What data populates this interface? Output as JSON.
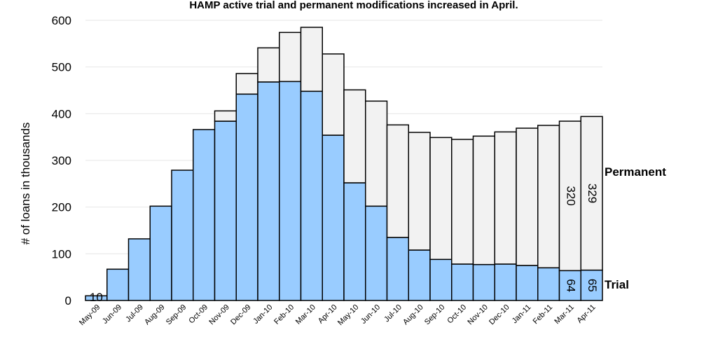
{
  "chart_data": {
    "type": "stacked-bar",
    "title": "HAMP active trial and permanent modifications increased in April.",
    "y_label": "# of loans in thousands",
    "categories": [
      "May-09",
      "Jun-09",
      "Jul-09",
      "Aug-09",
      "Sep-09",
      "Oct-09",
      "Nov-09",
      "Dec-09",
      "Jan-10",
      "Feb-10",
      "Mar-10",
      "Apr-10",
      "May-10",
      "Jun-10",
      "Jul-10",
      "Aug-10",
      "Sep-10",
      "Oct-10",
      "Nov-10",
      "Dec-10",
      "Jan-11",
      "Feb-11",
      "Mar-11",
      "Apr-11"
    ],
    "series": [
      {
        "name": "Trial",
        "color": "#99ccff",
        "values": [
          10,
          67,
          132,
          202,
          279,
          366,
          384,
          442,
          468,
          469,
          448,
          354,
          252,
          202,
          135,
          108,
          88,
          78,
          77,
          78,
          75,
          70,
          64,
          65
        ],
        "value_labels": [
          "10",
          null,
          null,
          null,
          null,
          null,
          null,
          null,
          null,
          null,
          null,
          null,
          null,
          null,
          null,
          null,
          null,
          null,
          null,
          null,
          null,
          null,
          "64",
          "65"
        ]
      },
      {
        "name": "Permanent",
        "color": "#f2f2f2",
        "values": [
          0,
          0,
          0,
          0,
          0,
          0,
          22,
          44,
          73,
          105,
          137,
          174,
          199,
          225,
          241,
          252,
          261,
          267,
          275,
          283,
          294,
          305,
          320,
          329
        ],
        "value_labels": [
          null,
          null,
          null,
          null,
          null,
          null,
          null,
          null,
          null,
          null,
          null,
          null,
          null,
          null,
          null,
          null,
          null,
          null,
          null,
          null,
          null,
          null,
          "320",
          "329"
        ]
      }
    ],
    "ylim": [
      0,
      600
    ],
    "yticks": [
      0,
      100,
      200,
      300,
      400,
      500,
      600
    ],
    "grid": true
  }
}
